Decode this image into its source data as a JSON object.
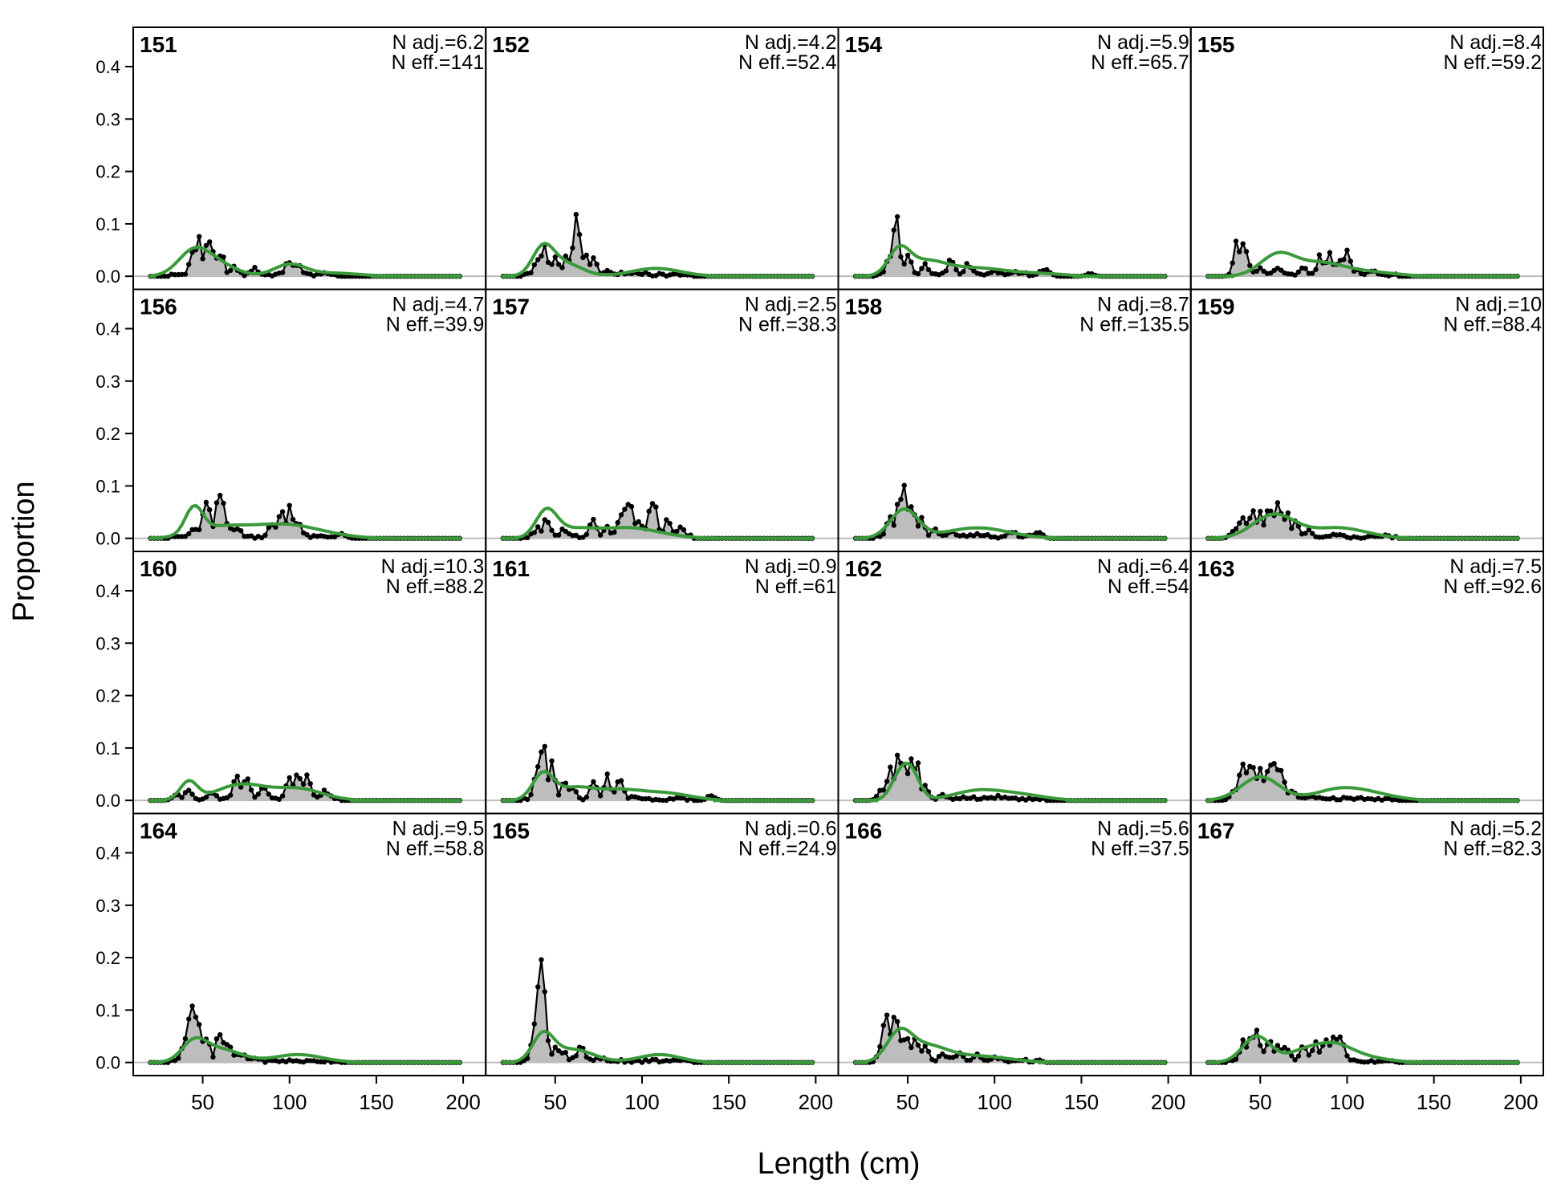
{
  "chart_data": {
    "type": "area",
    "xlabel": "Length (cm)",
    "ylabel": "Proportion",
    "xlim": [
      10,
      213
    ],
    "ylim": [
      -0.025,
      0.475
    ],
    "x_ticks": [
      50,
      100,
      150,
      200
    ],
    "y_ticks": [
      0.0,
      0.1,
      0.2,
      0.3,
      0.4
    ],
    "y_tick_labels": [
      "0.0",
      "0.1",
      "0.2",
      "0.3",
      "0.4"
    ],
    "x_range": [
      20,
      198
    ],
    "x_step": 2,
    "observed_color": "#000000",
    "observed_fill": "#bdbdbd",
    "expected_color": "#3a9a3a",
    "baseline_color": "#bdbdbd",
    "panels": [
      {
        "label": "151",
        "n_adj": "N adj.=6.2",
        "n_eff": "N eff.=141",
        "observed_peaks": [
          [
            45,
            0.05
          ],
          [
            48,
            0.07
          ],
          [
            52,
            0.06
          ],
          [
            55,
            0.065
          ],
          [
            60,
            0.05
          ],
          [
            68,
            0.02
          ],
          [
            80,
            0.015
          ],
          [
            100,
            0.035
          ],
          [
            105,
            0.02
          ],
          [
            120,
            0.008
          ]
        ],
        "expected_peaks": [
          [
            45,
            0.048,
            9
          ],
          [
            60,
            0.02,
            10
          ],
          [
            100,
            0.022,
            9
          ],
          [
            125,
            0.006,
            15
          ]
        ]
      },
      {
        "label": "156",
        "n_adj": "N adj.=4.7",
        "n_eff": "N eff.=39.9",
        "observed_peaks": [
          [
            45,
            0.02
          ],
          [
            52,
            0.093
          ],
          [
            60,
            0.107
          ],
          [
            65,
            0.03
          ],
          [
            70,
            0.025
          ],
          [
            90,
            0.035
          ],
          [
            95,
            0.05
          ],
          [
            100,
            0.055
          ],
          [
            105,
            0.03
          ],
          [
            130,
            0.01
          ]
        ],
        "expected_peaks": [
          [
            45,
            0.05,
            5
          ],
          [
            60,
            0.02,
            15
          ],
          [
            95,
            0.025,
            18
          ],
          [
            120,
            0.005,
            15
          ]
        ]
      },
      {
        "label": "160",
        "n_adj": "N adj.=10.3",
        "n_eff": "N eff.=88.2",
        "observed_peaks": [
          [
            35,
            0.015
          ],
          [
            42,
            0.025
          ],
          [
            55,
            0.02
          ],
          [
            70,
            0.05
          ],
          [
            75,
            0.045
          ],
          [
            85,
            0.03
          ],
          [
            100,
            0.05
          ],
          [
            105,
            0.055
          ],
          [
            110,
            0.05
          ],
          [
            120,
            0.02
          ]
        ],
        "expected_peaks": [
          [
            42,
            0.035,
            5
          ],
          [
            72,
            0.03,
            14
          ],
          [
            105,
            0.022,
            14
          ]
        ]
      },
      {
        "label": "164",
        "n_adj": "N adj.=9.5",
        "n_eff": "N eff.=58.8",
        "observed_peaks": [
          [
            40,
            0.05
          ],
          [
            43,
            0.108
          ],
          [
            47,
            0.09
          ],
          [
            52,
            0.05
          ],
          [
            60,
            0.06
          ],
          [
            65,
            0.04
          ],
          [
            72,
            0.02
          ],
          [
            80,
            0.01
          ]
        ],
        "expected_peaks": [
          [
            45,
            0.035,
            7
          ],
          [
            60,
            0.025,
            12
          ],
          [
            105,
            0.015,
            14
          ]
        ]
      },
      {
        "label": "152",
        "n_adj": "N adj.=4.2",
        "n_eff": "N eff.=52.4",
        "observed_peaks": [
          [
            40,
            0.035
          ],
          [
            43,
            0.06
          ],
          [
            50,
            0.035
          ],
          [
            57,
            0.04
          ],
          [
            62,
            0.105
          ],
          [
            67,
            0.04
          ],
          [
            72,
            0.035
          ],
          [
            80,
            0.01
          ],
          [
            90,
            0.005
          ],
          [
            100,
            0.005
          ]
        ],
        "expected_peaks": [
          [
            43,
            0.05,
            6
          ],
          [
            55,
            0.025,
            10
          ],
          [
            108,
            0.015,
            14
          ]
        ]
      },
      {
        "label": "157",
        "n_adj": "N adj.=2.5",
        "n_eff": "N eff.=38.3",
        "observed_peaks": [
          [
            40,
            0.02
          ],
          [
            45,
            0.035
          ],
          [
            55,
            0.02
          ],
          [
            72,
            0.04
          ],
          [
            80,
            0.02
          ],
          [
            88,
            0.055
          ],
          [
            92,
            0.08
          ],
          [
            98,
            0.04
          ],
          [
            106,
            0.085
          ],
          [
            115,
            0.035
          ],
          [
            122,
            0.025
          ]
        ],
        "expected_peaks": [
          [
            45,
            0.05,
            6
          ],
          [
            60,
            0.015,
            12
          ],
          [
            92,
            0.02,
            18
          ]
        ]
      },
      {
        "label": "161",
        "n_adj": "N adj.=0.9",
        "n_eff": "N eff.=61",
        "observed_peaks": [
          [
            40,
            0.06
          ],
          [
            43,
            0.1
          ],
          [
            48,
            0.075
          ],
          [
            55,
            0.035
          ],
          [
            60,
            0.03
          ],
          [
            72,
            0.04
          ],
          [
            80,
            0.045
          ],
          [
            87,
            0.045
          ],
          [
            95,
            0.01
          ],
          [
            140,
            0.01
          ]
        ],
        "expected_peaks": [
          [
            43,
            0.05,
            6
          ],
          [
            60,
            0.02,
            10
          ],
          [
            85,
            0.02,
            15
          ],
          [
            115,
            0.012,
            14
          ]
        ]
      },
      {
        "label": "165",
        "n_adj": "N adj.=0.6",
        "n_eff": "N eff.=24.9",
        "observed_peaks": [
          [
            38,
            0.05
          ],
          [
            40,
            0.12
          ],
          [
            42,
            0.19
          ],
          [
            45,
            0.04
          ],
          [
            50,
            0.03
          ],
          [
            55,
            0.02
          ],
          [
            65,
            0.03
          ],
          [
            75,
            0.01
          ]
        ],
        "expected_peaks": [
          [
            43,
            0.05,
            6
          ],
          [
            60,
            0.025,
            12
          ],
          [
            110,
            0.015,
            12
          ]
        ]
      },
      {
        "label": "154",
        "n_adj": "N adj.=5.9",
        "n_eff": "N eff.=65.7",
        "observed_peaks": [
          [
            40,
            0.05
          ],
          [
            43,
            0.122
          ],
          [
            46,
            0.05
          ],
          [
            50,
            0.04
          ],
          [
            60,
            0.025
          ],
          [
            75,
            0.03
          ],
          [
            85,
            0.025
          ],
          [
            100,
            0.01
          ],
          [
            115,
            0.008
          ],
          [
            130,
            0.015
          ],
          [
            155,
            0.005
          ]
        ],
        "expected_peaks": [
          [
            45,
            0.045,
            6
          ],
          [
            60,
            0.028,
            12
          ],
          [
            90,
            0.015,
            16
          ],
          [
            125,
            0.005,
            15
          ]
        ]
      },
      {
        "label": "158",
        "n_adj": "N adj.=8.7",
        "n_eff": "N eff.=135.5",
        "observed_peaks": [
          [
            40,
            0.04
          ],
          [
            45,
            0.08
          ],
          [
            48,
            0.1
          ],
          [
            52,
            0.07
          ],
          [
            58,
            0.035
          ],
          [
            65,
            0.02
          ],
          [
            75,
            0.015
          ],
          [
            90,
            0.01
          ],
          [
            110,
            0.015
          ],
          [
            125,
            0.015
          ]
        ],
        "expected_peaks": [
          [
            48,
            0.055,
            8
          ],
          [
            90,
            0.02,
            18
          ]
        ]
      },
      {
        "label": "162",
        "n_adj": "N adj.=6.4",
        "n_eff": "N eff.=54",
        "observed_peaks": [
          [
            35,
            0.02
          ],
          [
            40,
            0.06
          ],
          [
            45,
            0.1
          ],
          [
            48,
            0.07
          ],
          [
            52,
            0.11
          ],
          [
            55,
            0.07
          ],
          [
            60,
            0.03
          ],
          [
            70,
            0.01
          ],
          [
            85,
            0.005
          ],
          [
            100,
            0.005
          ]
        ],
        "expected_peaks": [
          [
            45,
            0.04,
            5
          ],
          [
            52,
            0.05,
            5
          ],
          [
            90,
            0.018,
            14
          ],
          [
            115,
            0.01,
            14
          ]
        ]
      },
      {
        "label": "166",
        "n_adj": "N adj.=5.6",
        "n_eff": "N eff.=37.5",
        "observed_peaks": [
          [
            36,
            0.06
          ],
          [
            38,
            0.11
          ],
          [
            42,
            0.11
          ],
          [
            46,
            0.045
          ],
          [
            50,
            0.06
          ],
          [
            55,
            0.05
          ],
          [
            60,
            0.03
          ],
          [
            70,
            0.02
          ],
          [
            80,
            0.02
          ],
          [
            90,
            0.015
          ],
          [
            100,
            0.01
          ]
        ],
        "expected_peaks": [
          [
            45,
            0.05,
            7
          ],
          [
            60,
            0.03,
            12
          ],
          [
            90,
            0.012,
            18
          ]
        ]
      },
      {
        "label": "155",
        "n_adj": "N adj.=8.4",
        "n_eff": "N eff.=59.2",
        "observed_peaks": [
          [
            37,
            0.065
          ],
          [
            40,
            0.07
          ],
          [
            43,
            0.03
          ],
          [
            50,
            0.015
          ],
          [
            60,
            0.02
          ],
          [
            75,
            0.02
          ],
          [
            85,
            0.04
          ],
          [
            90,
            0.04
          ],
          [
            95,
            0.035
          ],
          [
            100,
            0.045
          ],
          [
            105,
            0.015
          ],
          [
            115,
            0.01
          ]
        ],
        "expected_peaks": [
          [
            60,
            0.04,
            10
          ],
          [
            85,
            0.025,
            14
          ],
          [
            115,
            0.007,
            14
          ]
        ]
      },
      {
        "label": "159",
        "n_adj": "N adj.=10",
        "n_eff": "N eff.=88.4",
        "observed_peaks": [
          [
            35,
            0.02
          ],
          [
            40,
            0.05
          ],
          [
            45,
            0.06
          ],
          [
            50,
            0.05
          ],
          [
            55,
            0.06
          ],
          [
            60,
            0.07
          ],
          [
            65,
            0.055
          ],
          [
            70,
            0.04
          ],
          [
            78,
            0.015
          ],
          [
            95,
            0.01
          ],
          [
            120,
            0.005
          ]
        ],
        "expected_peaks": [
          [
            58,
            0.045,
            12
          ],
          [
            95,
            0.02,
            16
          ]
        ]
      },
      {
        "label": "163",
        "n_adj": "N adj.=7.5",
        "n_eff": "N eff.=92.6",
        "observed_peaks": [
          [
            35,
            0.02
          ],
          [
            40,
            0.07
          ],
          [
            45,
            0.07
          ],
          [
            50,
            0.065
          ],
          [
            55,
            0.07
          ],
          [
            58,
            0.08
          ],
          [
            62,
            0.06
          ],
          [
            68,
            0.02
          ],
          [
            80,
            0.01
          ],
          [
            100,
            0.005
          ]
        ],
        "expected_peaks": [
          [
            50,
            0.045,
            11
          ],
          [
            95,
            0.02,
            14
          ],
          [
            115,
            0.01,
            14
          ]
        ]
      },
      {
        "label": "167",
        "n_adj": "N adj.=5.2",
        "n_eff": "N eff.=82.3",
        "observed_peaks": [
          [
            40,
            0.04
          ],
          [
            45,
            0.055
          ],
          [
            48,
            0.06
          ],
          [
            55,
            0.05
          ],
          [
            60,
            0.04
          ],
          [
            65,
            0.03
          ],
          [
            75,
            0.035
          ],
          [
            82,
            0.04
          ],
          [
            88,
            0.05
          ],
          [
            93,
            0.06
          ],
          [
            96,
            0.065
          ],
          [
            100,
            0.01
          ]
        ],
        "expected_peaks": [
          [
            48,
            0.05,
            8
          ],
          [
            75,
            0.02,
            10
          ],
          [
            92,
            0.025,
            10
          ],
          [
            105,
            0.012,
            15
          ]
        ]
      }
    ]
  }
}
